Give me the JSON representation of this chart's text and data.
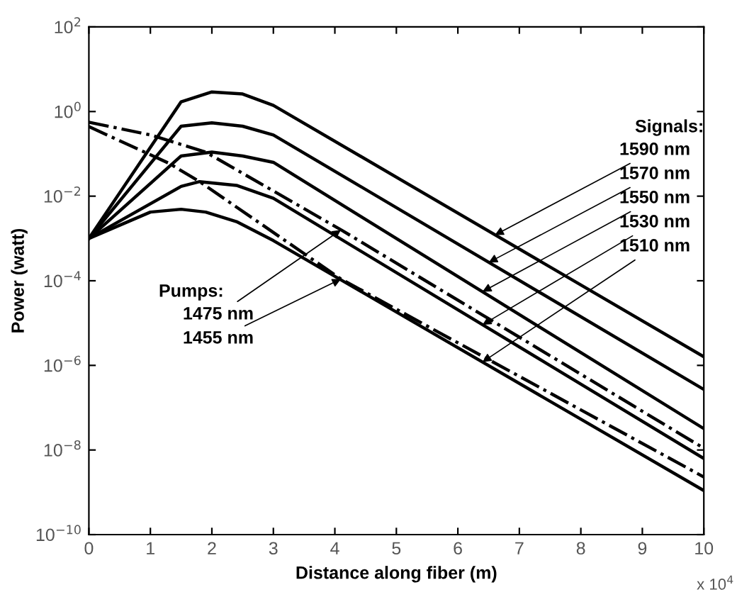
{
  "chart_data": {
    "type": "line",
    "xlabel": "Distance along fiber (m)",
    "ylabel": "Power (watt)",
    "log": "y",
    "line_style": "solid",
    "marker": "none",
    "grid": false,
    "legend": false,
    "xlim": [
      0,
      10
    ],
    "ylim": [
      1e-10,
      100
    ],
    "xticks": [
      0,
      1,
      2,
      3,
      4,
      5,
      6,
      7,
      8,
      9,
      10
    ],
    "yticks": [
      {
        "value": 1e-10,
        "label": "10$^{−10}$"
      },
      {
        "value": 1e-08,
        "label": "10$^{−8}$"
      },
      {
        "value": 1e-06,
        "label": "10$^{−6}$"
      },
      {
        "value": 0.0001,
        "label": "10$^{−4}$"
      },
      {
        "value": 0.01,
        "label": "10$^{−2}$"
      },
      {
        "value": 1,
        "label": "10$^{0}$"
      },
      {
        "value": 100,
        "label": "10$^{2}$"
      }
    ],
    "annotations": [
      "Signals:",
      {
        "text": "1590 nm",
        "x": 6.6,
        "y": 0.0012
      },
      {
        "text": "1570 nm",
        "x": 6.5,
        "y": 0.00027
      },
      {
        "text": "1550 nm",
        "x": 6.4,
        "y": 5.5e-05
      },
      {
        "text": "1530 nm",
        "x": 6.4,
        "y": 9.1e-06
      },
      {
        "text": "1510 nm",
        "x": 6.4,
        "y": 1.2e-06
      },
      "Pumps:",
      {
        "text": "1475 nm",
        "x": 4.1,
        "y": 0.0016
      },
      {
        "text": "1455 nm",
        "x": 4.1,
        "y": 0.00011
      },
      "x 10$^{4}$"
    ],
    "series": [
      {
        "color": "#000000",
        "x": [
          0,
          1.5,
          2,
          2.5,
          3,
          10
        ],
        "values": [
          0.001,
          1.7,
          2.9,
          2.6,
          1.4,
          1.6e-06
        ]
      },
      {
        "color": "#000000",
        "x": [
          0,
          1.5,
          2,
          2.5,
          3,
          10
        ],
        "values": [
          0.001,
          0.45,
          0.54,
          0.45,
          0.28,
          2.7e-07
        ]
      },
      {
        "color": "#000000",
        "x": [
          0,
          1.5,
          2,
          2.5,
          3,
          10
        ],
        "values": [
          0.001,
          0.089,
          0.11,
          0.089,
          0.063,
          3.2e-08
        ]
      },
      {
        "color": "#000000",
        "x": [
          0,
          1.5,
          1.8,
          2.4,
          3,
          10
        ],
        "values": [
          0.001,
          0.017,
          0.022,
          0.018,
          0.0089,
          6.3e-09
        ]
      },
      {
        "color": "#000000",
        "x": [
          0,
          1,
          1.5,
          1.9,
          2.4,
          3,
          10
        ],
        "values": [
          0.001,
          0.0042,
          0.0049,
          0.0042,
          0.0025,
          0.00089,
          1.1e-09
        ]
      },
      {
        "color": "#000000",
        "line_style": "dashdot",
        "x": [
          0,
          1,
          1.9,
          4.1,
          10
        ],
        "values": [
          0.56,
          0.28,
          0.11,
          0.0016,
          1.1e-08
        ]
      },
      {
        "color": "#000000",
        "line_style": "dashdot",
        "x": [
          0,
          1.3,
          1.8,
          4.1,
          10
        ],
        "values": [
          0.44,
          0.06,
          0.022,
          0.00011,
          2.3e-09
        ]
      }
    ]
  }
}
